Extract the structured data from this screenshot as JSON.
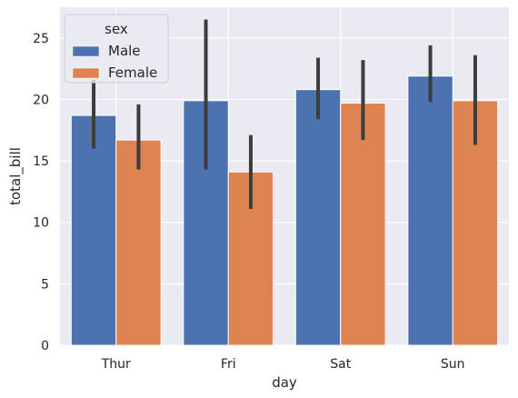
{
  "chart_data": {
    "type": "bar",
    "xlabel": "day",
    "ylabel": "total_bill",
    "categories": [
      "Thur",
      "Fri",
      "Sat",
      "Sun"
    ],
    "ylim": [
      0,
      27.5
    ],
    "yticks": [
      0,
      5,
      10,
      15,
      20,
      25
    ],
    "grid": true,
    "legend": {
      "title": "sex",
      "placement": "top-left"
    },
    "series": [
      {
        "name": "Male",
        "color": "#4c72b0",
        "values": [
          18.7,
          19.9,
          20.8,
          21.9
        ],
        "ci_low": [
          16.0,
          14.3,
          18.4,
          19.8
        ],
        "ci_high": [
          21.6,
          26.5,
          23.4,
          24.4
        ]
      },
      {
        "name": "Female",
        "color": "#dd8452",
        "values": [
          16.7,
          14.1,
          19.7,
          19.9
        ],
        "ci_low": [
          14.3,
          11.1,
          16.7,
          16.3
        ],
        "ci_high": [
          19.6,
          17.1,
          23.2,
          23.6
        ]
      }
    ]
  }
}
